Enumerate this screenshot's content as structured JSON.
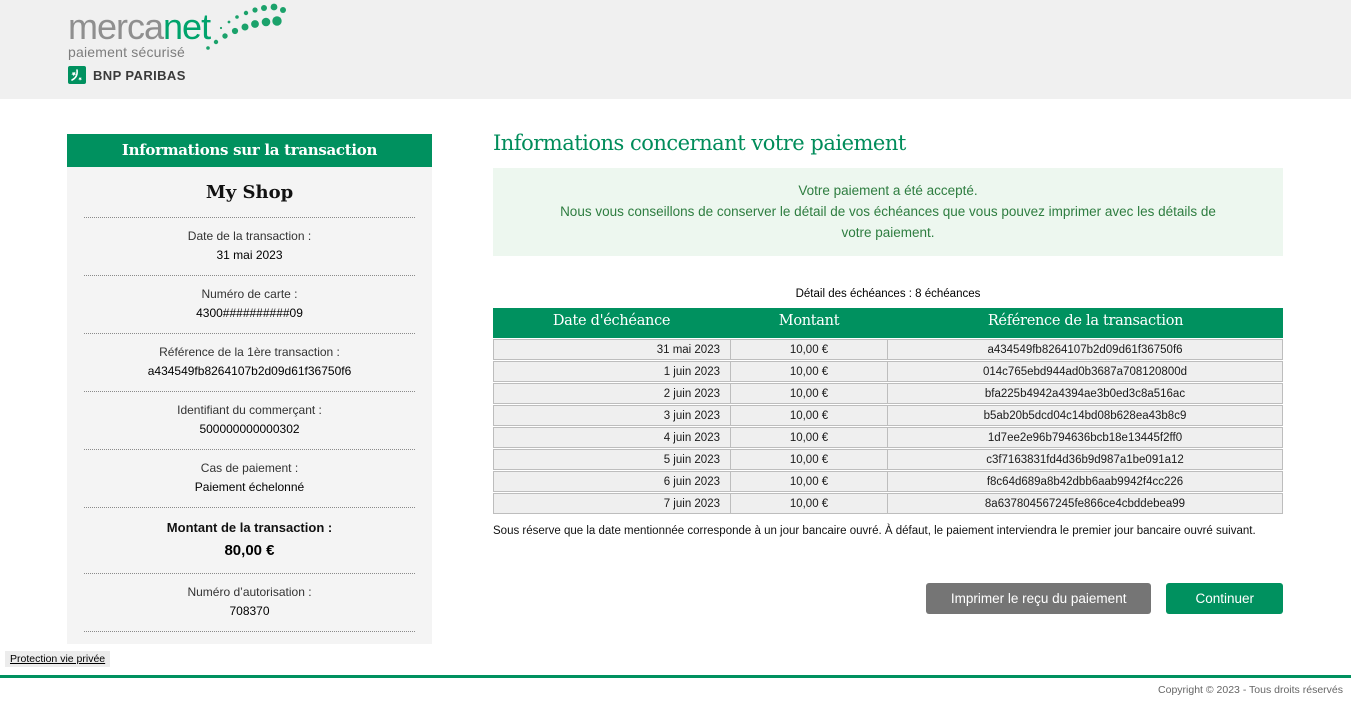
{
  "brand": {
    "logo_gray": "merca",
    "logo_green": "net",
    "logo_subtitle": "paiement sécurisé",
    "bank_name": "BNP PARIBAS"
  },
  "colors": {
    "brand_green": "#00915f",
    "logo_green": "#00a36c",
    "message_green": "#2e7d40",
    "message_bg": "#edf7ef",
    "banner_bg": "#f0f0f0",
    "sidebar_bg": "#f4f4f4",
    "row_bg": "#efefef",
    "gray_button": "#757575"
  },
  "sidebar": {
    "title": "Informations sur la transaction",
    "shop_name": "My Shop",
    "fields": [
      {
        "label": "Date de la transaction :",
        "value": "31 mai 2023"
      },
      {
        "label": "Numéro de carte :",
        "value": "4300##########09"
      },
      {
        "label": "Référence de la 1ère transaction :",
        "value": "a434549fb8264107b2d09d61f36750f6"
      },
      {
        "label": "Identifiant du commerçant :",
        "value": "500000000000302"
      },
      {
        "label": "Cas de paiement :",
        "value": "Paiement échelonné"
      }
    ],
    "amount": {
      "label": "Montant de la transaction  :",
      "value": "80,00 €"
    },
    "authorization": {
      "label": "Numéro d’autorisation :",
      "value": "708370"
    }
  },
  "main": {
    "title": "Informations concernant votre paiement",
    "message_line1": "Votre paiement a été accepté.",
    "message_line2": "Nous vous conseillons de conserver le détail de vos échéances que vous pouvez imprimer avec les détails de votre paiement.",
    "table_caption": "Détail des échéances : 8 échéances",
    "table": {
      "headers": [
        "Date d'échéance",
        "Montant",
        "Référence de la transaction"
      ],
      "rows": [
        [
          "31 mai 2023",
          "10,00 €",
          "a434549fb8264107b2d09d61f36750f6"
        ],
        [
          "1 juin 2023",
          "10,00 €",
          "014c765ebd944ad0b3687a708120800d"
        ],
        [
          "2 juin 2023",
          "10,00 €",
          "bfa225b4942a4394ae3b0ed3c8a516ac"
        ],
        [
          "3 juin 2023",
          "10,00 €",
          "b5ab20b5dcd04c14bd08b628ea43b8c9"
        ],
        [
          "4 juin 2023",
          "10,00 €",
          "1d7ee2e96b794636bcb18e13445f2ff0"
        ],
        [
          "5 juin 2023",
          "10,00 €",
          "c3f7163831fd4d36b9d987a1be091a12"
        ],
        [
          "6 juin 2023",
          "10,00 €",
          "f8c64d689a8b42dbb6aab9942f4cc226"
        ],
        [
          "7 juin 2023",
          "10,00 €",
          "8a637804567245fe866ce4cbddebea99"
        ]
      ]
    },
    "note": "Sous réserve que la date mentionnée corresponde à un jour bancaire ouvré. À défaut, le paiement interviendra le premier jour bancaire ouvré suivant.",
    "buttons": {
      "print": "Imprimer le reçu du paiement",
      "continue": "Continuer"
    }
  },
  "footer": {
    "privacy_link": "Protection vie privée",
    "copyright": "Copyright © 2023 - Tous droits réservés"
  }
}
